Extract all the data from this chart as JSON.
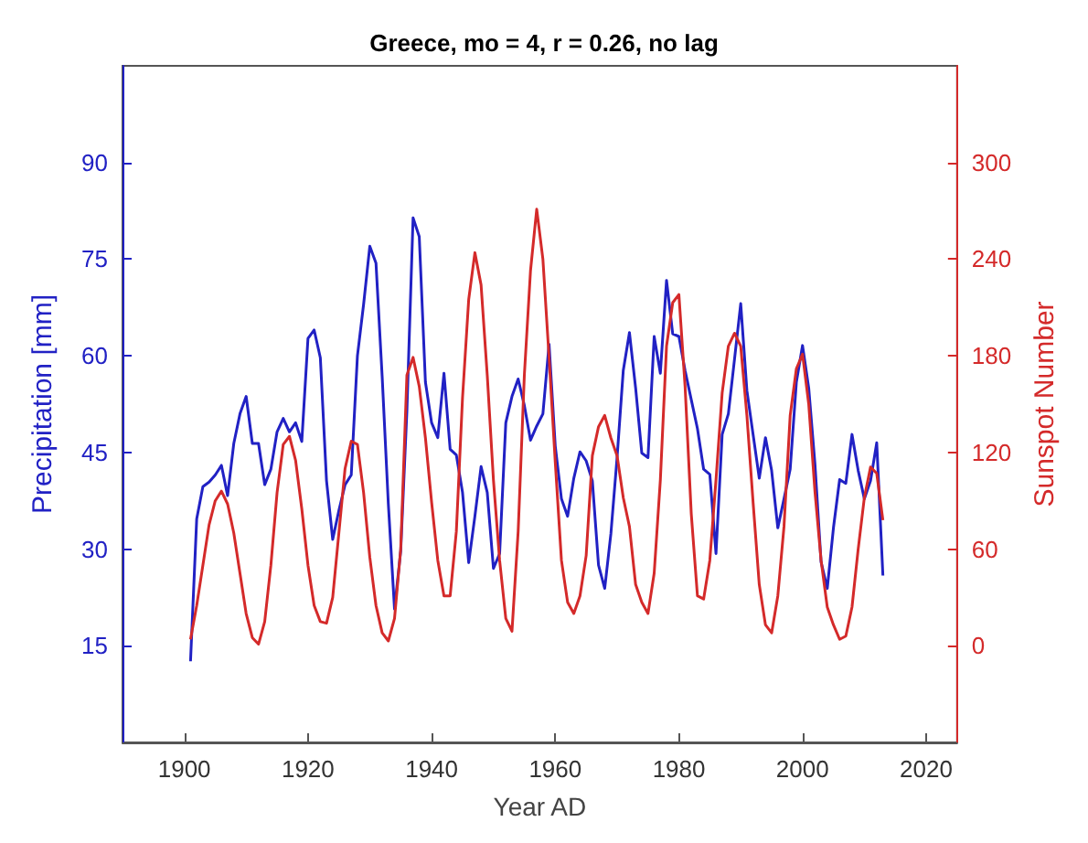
{
  "chart_data": {
    "type": "line",
    "title": "Greece, mo = 4, r = 0.26, no lag",
    "xlabel": "Year AD",
    "ylabel": "Precipitation [mm]",
    "y2label": "Sunspot Number",
    "x": [
      1901,
      1902,
      1903,
      1904,
      1905,
      1906,
      1907,
      1908,
      1909,
      1910,
      1911,
      1912,
      1913,
      1914,
      1915,
      1916,
      1917,
      1918,
      1919,
      1920,
      1921,
      1922,
      1923,
      1924,
      1925,
      1926,
      1927,
      1928,
      1929,
      1930,
      1931,
      1932,
      1933,
      1934,
      1935,
      1936,
      1937,
      1938,
      1939,
      1940,
      1941,
      1942,
      1943,
      1944,
      1945,
      1946,
      1947,
      1948,
      1949,
      1950,
      1951,
      1952,
      1953,
      1954,
      1955,
      1956,
      1957,
      1958,
      1959,
      1960,
      1961,
      1962,
      1963,
      1964,
      1965,
      1966,
      1967,
      1968,
      1969,
      1970,
      1971,
      1972,
      1973,
      1974,
      1975,
      1976,
      1977,
      1978,
      1979,
      1980,
      1981,
      1982,
      1983,
      1984,
      1985,
      1986,
      1987,
      1988,
      1989,
      1990,
      1991,
      1992,
      1993,
      1994,
      1995,
      1996,
      1997,
      1998,
      1999,
      2000,
      2001,
      2002,
      2003,
      2004,
      2005,
      2006,
      2007,
      2008,
      2009,
      2010,
      2011,
      2012,
      2013
    ],
    "series": [
      {
        "color": "#2121c4",
        "values": [
          12.6,
          34.7,
          39.7,
          40.4,
          41.5,
          43,
          38.3,
          46.4,
          51,
          53.7,
          46.4,
          46.4,
          40,
          42.4,
          48.2,
          50.3,
          48.2,
          49.6,
          46.7,
          62.7,
          64,
          59.7,
          40.6,
          31.5,
          36,
          40,
          41.5,
          60,
          68,
          77,
          74.4,
          56.8,
          37,
          20.7,
          29.7,
          51.4,
          81.4,
          78.5,
          55.9,
          49.6,
          47.3,
          57.3,
          45.5,
          44.6,
          38.8,
          27.9,
          35.1,
          42.8,
          38.8,
          27,
          29.3,
          49.6,
          53.7,
          56.4,
          52.3,
          46.9,
          49.1,
          51,
          61.8,
          46,
          37.8,
          35.1,
          41,
          45.1,
          43.7,
          40.6,
          27.5,
          23.9,
          32.4,
          44.2,
          57.7,
          63.6,
          55,
          44.9,
          44.2,
          63,
          57.3,
          71.7,
          63.4,
          63,
          57.7,
          53.2,
          48.7,
          42.4,
          41.6,
          29.3,
          47.8,
          51,
          59.5,
          68.1,
          54.6,
          47.8,
          41,
          47.3,
          42.2,
          33.3,
          37.8,
          42.4,
          55.9,
          61.6,
          55,
          43.3,
          28,
          23.9,
          33.3,
          40.8,
          40.2,
          47.8,
          42.2,
          37.8,
          40.6,
          46.5,
          25.9
        ]
      },
      {
        "color": "#d42a2a",
        "axis": "y2",
        "values": [
          4,
          25,
          50,
          75,
          90,
          96,
          88,
          70,
          45,
          20,
          5,
          1,
          15,
          50,
          95,
          125,
          130,
          115,
          85,
          50,
          25,
          15,
          14,
          30,
          70,
          110,
          127,
          125,
          95,
          55,
          25,
          8,
          3,
          17,
          60,
          168,
          179,
          161,
          129,
          89,
          53,
          31,
          31,
          71,
          154,
          215,
          244,
          224,
          168,
          103,
          53,
          17,
          9,
          71,
          168,
          233,
          271,
          240,
          179,
          114,
          53,
          27,
          20,
          31,
          56,
          118,
          136,
          143,
          129,
          118,
          92,
          74,
          38,
          27,
          20,
          45,
          103,
          186,
          213,
          218,
          161,
          82,
          31,
          29,
          53,
          103,
          157,
          186,
          194,
          186,
          143,
          89,
          38,
          13,
          8,
          31,
          74,
          143,
          172,
          181,
          150,
          96,
          53,
          24,
          13,
          4,
          6,
          24,
          60,
          92,
          111,
          107,
          78
        ]
      }
    ],
    "xlim": [
      1890,
      2025
    ],
    "xticks": [
      1900,
      1920,
      1940,
      1960,
      1980,
      2000,
      2020
    ],
    "ylim": [
      0,
      105
    ],
    "yticks": [
      15,
      30,
      45,
      60,
      75,
      90
    ],
    "y2lim": [
      -60,
      360
    ],
    "y2ticks": [
      0,
      60,
      120,
      180,
      240,
      300
    ],
    "grid": false
  }
}
